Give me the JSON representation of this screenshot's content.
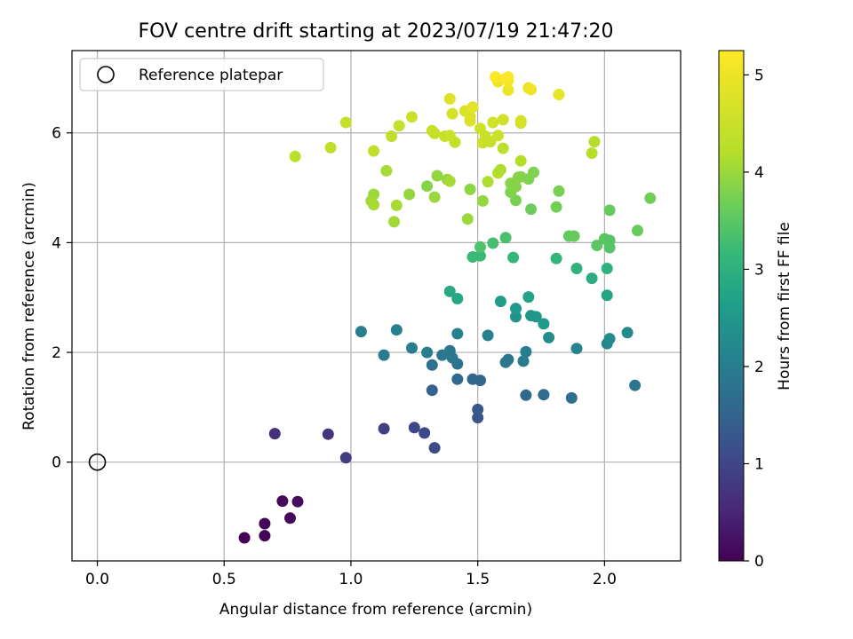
{
  "chart_data": {
    "type": "scatter",
    "title": "FOV centre drift starting at 2023/07/19 21:47:20",
    "xlabel": "Angular distance from reference (arcmin)",
    "ylabel": "Rotation from reference (arcmin)",
    "xlim": [
      -0.1,
      2.3
    ],
    "ylim": [
      -1.8,
      7.5
    ],
    "xticks": [
      "0.0",
      "0.5",
      "1.0",
      "1.5",
      "2.0"
    ],
    "yticks": [
      "0",
      "2",
      "4",
      "6"
    ],
    "grid": true,
    "legend": {
      "position": "top-left",
      "entries": [
        "Reference platepar"
      ]
    },
    "reference_point": {
      "x": 0,
      "y": 0
    },
    "colorbar": {
      "label": "Hours from first FF file",
      "range": [
        0,
        5.25
      ],
      "ticks": [
        "0",
        "1",
        "2",
        "3",
        "4",
        "5"
      ],
      "colormap": "viridis"
    },
    "series": [
      {
        "points": [
          [
            0.58,
            -1.38,
            0.0
          ],
          [
            0.66,
            -1.34,
            0.05
          ],
          [
            0.66,
            -1.12,
            0.08
          ],
          [
            0.73,
            -0.71,
            0.1
          ],
          [
            0.76,
            -1.02,
            0.12
          ],
          [
            0.79,
            -0.72,
            0.15
          ],
          [
            0.7,
            0.52,
            0.65
          ],
          [
            0.91,
            0.51,
            0.7
          ],
          [
            0.98,
            0.08,
            0.85
          ],
          [
            1.13,
            0.61,
            0.9
          ],
          [
            1.25,
            0.63,
            1.0
          ],
          [
            1.29,
            0.53,
            1.05
          ],
          [
            1.33,
            0.26,
            1.1
          ],
          [
            1.5,
            0.81,
            1.25
          ],
          [
            1.5,
            0.96,
            1.3
          ],
          [
            1.32,
            1.31,
            1.45
          ],
          [
            1.48,
            1.51,
            1.55
          ],
          [
            1.51,
            1.49,
            1.55
          ],
          [
            1.42,
            1.51,
            1.6
          ],
          [
            1.69,
            1.22,
            1.6
          ],
          [
            1.76,
            1.23,
            1.65
          ],
          [
            1.87,
            1.17,
            1.7
          ],
          [
            2.12,
            1.4,
            1.85
          ],
          [
            1.32,
            1.77,
            1.75
          ],
          [
            1.42,
            1.79,
            1.8
          ],
          [
            1.36,
            1.95,
            1.85
          ],
          [
            1.4,
            1.9,
            1.9
          ],
          [
            1.39,
            2.03,
            1.9
          ],
          [
            1.13,
            1.95,
            1.95
          ],
          [
            1.24,
            2.08,
            2.0
          ],
          [
            1.3,
            2.0,
            2.0
          ],
          [
            1.42,
            2.34,
            2.05
          ],
          [
            1.04,
            2.38,
            2.0
          ],
          [
            1.18,
            2.41,
            2.05
          ],
          [
            1.61,
            1.82,
            1.85
          ],
          [
            1.62,
            1.87,
            1.9
          ],
          [
            1.68,
            1.84,
            1.95
          ],
          [
            1.69,
            2.01,
            2.0
          ],
          [
            1.54,
            2.31,
            2.05
          ],
          [
            1.89,
            2.07,
            2.15
          ],
          [
            2.01,
            2.16,
            2.2
          ],
          [
            2.02,
            2.25,
            2.25
          ],
          [
            2.09,
            2.36,
            2.25
          ],
          [
            1.78,
            2.27,
            2.3
          ],
          [
            1.65,
            2.65,
            2.4
          ],
          [
            1.71,
            2.67,
            2.45
          ],
          [
            1.73,
            2.65,
            2.5
          ],
          [
            1.76,
            2.52,
            2.55
          ],
          [
            1.65,
            2.8,
            2.55
          ],
          [
            1.59,
            2.93,
            2.6
          ],
          [
            1.7,
            3.01,
            2.7
          ],
          [
            2.01,
            3.04,
            2.75
          ],
          [
            1.42,
            2.98,
            2.8
          ],
          [
            1.39,
            3.11,
            2.85
          ],
          [
            1.95,
            3.35,
            2.95
          ],
          [
            2.01,
            3.53,
            3.0
          ],
          [
            1.89,
            3.53,
            3.05
          ],
          [
            1.81,
            3.71,
            3.1
          ],
          [
            1.64,
            3.73,
            3.15
          ],
          [
            1.48,
            3.74,
            3.2
          ],
          [
            1.51,
            3.76,
            3.2
          ],
          [
            1.56,
            3.99,
            3.3
          ],
          [
            1.61,
            4.09,
            3.35
          ],
          [
            1.51,
            3.92,
            3.4
          ],
          [
            2.02,
            3.91,
            3.45
          ],
          [
            1.97,
            3.95,
            3.5
          ],
          [
            2.0,
            4.07,
            3.5
          ],
          [
            2.02,
            4.04,
            3.45
          ],
          [
            1.86,
            4.12,
            3.55
          ],
          [
            1.88,
            4.12,
            3.6
          ],
          [
            2.13,
            4.22,
            3.6
          ],
          [
            2.02,
            4.59,
            3.6
          ],
          [
            2.18,
            4.81,
            3.7
          ],
          [
            1.81,
            4.65,
            3.7
          ],
          [
            1.71,
            4.61,
            3.65
          ],
          [
            1.65,
            4.77,
            3.75
          ],
          [
            1.82,
            4.94,
            3.75
          ],
          [
            1.63,
            4.92,
            3.8
          ],
          [
            1.65,
            5.02,
            3.85
          ],
          [
            1.63,
            5.08,
            3.85
          ],
          [
            1.67,
            5.2,
            3.9
          ],
          [
            1.66,
            5.19,
            3.85
          ],
          [
            1.7,
            5.16,
            3.8
          ],
          [
            1.72,
            5.28,
            3.8
          ],
          [
            1.52,
            4.76,
            3.95
          ],
          [
            1.47,
            4.97,
            3.9
          ],
          [
            1.46,
            4.43,
            4.0
          ],
          [
            1.34,
            5.22,
            3.95
          ],
          [
            1.38,
            5.15,
            3.95
          ],
          [
            1.3,
            5.03,
            3.85
          ],
          [
            1.33,
            4.83,
            4.0
          ],
          [
            1.23,
            4.88,
            3.95
          ],
          [
            1.09,
            4.88,
            4.0
          ],
          [
            1.08,
            4.76,
            4.05
          ],
          [
            1.09,
            4.69,
            4.1
          ],
          [
            1.18,
            4.68,
            4.1
          ],
          [
            1.17,
            4.38,
            4.05
          ],
          [
            1.14,
            5.31,
            4.1
          ],
          [
            1.39,
            5.12,
            4.1
          ],
          [
            1.54,
            5.11,
            4.15
          ],
          [
            1.58,
            5.27,
            4.2
          ],
          [
            1.59,
            5.33,
            4.15
          ],
          [
            1.67,
            5.49,
            4.2
          ],
          [
            1.96,
            5.84,
            4.2
          ],
          [
            1.95,
            5.63,
            4.25
          ],
          [
            1.6,
            5.72,
            4.3
          ],
          [
            0.78,
            5.57,
            4.3
          ],
          [
            0.92,
            5.73,
            4.35
          ],
          [
            1.09,
            5.67,
            4.35
          ],
          [
            1.16,
            5.94,
            4.35
          ],
          [
            1.19,
            6.13,
            4.4
          ],
          [
            1.33,
            5.99,
            4.4
          ],
          [
            1.32,
            6.04,
            4.45
          ],
          [
            1.37,
            5.94,
            4.45
          ],
          [
            1.39,
            5.95,
            4.5
          ],
          [
            1.41,
            5.83,
            4.45
          ],
          [
            1.52,
            5.82,
            4.5
          ],
          [
            1.55,
            5.84,
            4.45
          ],
          [
            1.53,
            5.94,
            4.5
          ],
          [
            1.58,
            5.95,
            4.55
          ],
          [
            1.51,
            6.08,
            4.55
          ],
          [
            1.56,
            6.19,
            4.6
          ],
          [
            1.6,
            6.24,
            4.6
          ],
          [
            1.67,
            6.18,
            4.6
          ],
          [
            1.67,
            6.22,
            4.65
          ],
          [
            0.98,
            6.19,
            4.45
          ],
          [
            1.24,
            6.29,
            4.5
          ],
          [
            1.4,
            6.35,
            4.65
          ],
          [
            1.45,
            6.4,
            4.7
          ],
          [
            1.47,
            6.3,
            4.75
          ],
          [
            1.47,
            6.22,
            4.75
          ],
          [
            1.48,
            6.47,
            4.85
          ],
          [
            1.39,
            6.62,
            4.8
          ],
          [
            1.82,
            6.7,
            4.9
          ],
          [
            1.62,
            6.78,
            5.0
          ],
          [
            1.7,
            6.82,
            5.0
          ],
          [
            1.71,
            6.79,
            5.05
          ],
          [
            1.58,
            6.93,
            5.05
          ],
          [
            1.62,
            6.95,
            5.1
          ],
          [
            1.62,
            7.02,
            5.2
          ],
          [
            1.57,
            7.02,
            5.2
          ],
          [
            1.61,
            6.99,
            5.2
          ]
        ]
      }
    ]
  }
}
